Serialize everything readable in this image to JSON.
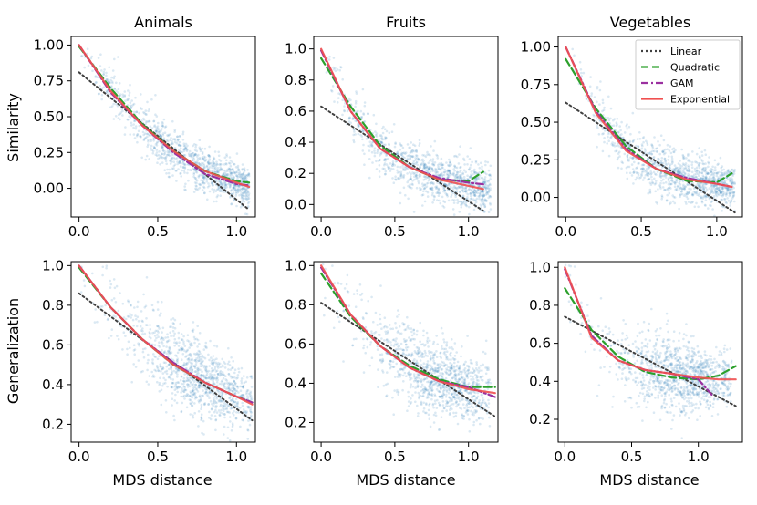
{
  "chart_data": {
    "type": "scatter",
    "row_labels": [
      "Similarity",
      "Generalization"
    ],
    "xlabel": "MDS distance",
    "legend": {
      "location": "top-right",
      "entries": [
        {
          "name": "Linear",
          "color": "#404040",
          "style": "dotted"
        },
        {
          "name": "Quadratic",
          "color": "#2ca02c",
          "style": "dashed"
        },
        {
          "name": "GAM",
          "color": "#9b30a0",
          "style": "dashdot"
        },
        {
          "name": "Exponential",
          "color": "#f05050",
          "style": "solid"
        }
      ]
    },
    "panels": [
      {
        "title": "Animals",
        "row": 0,
        "col": 0,
        "xlim": [
          -0.05,
          1.12
        ],
        "ylim": [
          -0.2,
          1.06
        ],
        "xticks": [
          0.0,
          0.5,
          1.0
        ],
        "xtick_labels": [
          "0.0",
          "0.5",
          "1.0"
        ],
        "yticks": [
          0.0,
          0.25,
          0.5,
          0.75,
          1.0
        ],
        "ytick_labels": [
          "0.00",
          "0.25",
          "0.50",
          "0.75",
          "1.00"
        ],
        "scatter": {
          "n": 1100,
          "x_range": [
            0.0,
            1.08
          ],
          "seed": 11
        },
        "fits": {
          "Linear": {
            "x": [
              0.0,
              1.08
            ],
            "y": [
              0.81,
              -0.15
            ]
          },
          "Quadratic": {
            "x": [
              0.0,
              0.2,
              0.4,
              0.6,
              0.8,
              1.0,
              1.08
            ],
            "y": [
              0.99,
              0.7,
              0.45,
              0.26,
              0.12,
              0.05,
              0.04
            ]
          },
          "GAM": {
            "x": [
              0.0,
              0.2,
              0.4,
              0.6,
              0.8,
              1.0,
              1.08
            ],
            "y": [
              1.0,
              0.67,
              0.44,
              0.25,
              0.1,
              0.03,
              0.02
            ]
          },
          "Exponential": {
            "x": [
              0.0,
              0.2,
              0.4,
              0.6,
              0.8,
              1.0,
              1.08
            ],
            "y": [
              1.0,
              0.68,
              0.44,
              0.26,
              0.12,
              0.04,
              0.01
            ]
          }
        }
      },
      {
        "title": "Fruits",
        "row": 0,
        "col": 1,
        "xlim": [
          -0.05,
          1.2
        ],
        "ylim": [
          -0.08,
          1.08
        ],
        "xticks": [
          0.0,
          0.5,
          1.0
        ],
        "xtick_labels": [
          "0.0",
          "0.5",
          "1.0"
        ],
        "yticks": [
          0.0,
          0.2,
          0.4,
          0.6,
          0.8,
          1.0
        ],
        "ytick_labels": [
          "0.0",
          "0.2",
          "0.4",
          "0.6",
          "0.8",
          "1.0"
        ],
        "scatter": {
          "n": 1100,
          "x_range": [
            0.0,
            1.15
          ],
          "seed": 23
        },
        "fits": {
          "Linear": {
            "x": [
              0.0,
              1.1
            ],
            "y": [
              0.63,
              -0.04
            ]
          },
          "Quadratic": {
            "x": [
              0.0,
              0.2,
              0.4,
              0.6,
              0.8,
              1.0,
              1.1
            ],
            "y": [
              0.94,
              0.63,
              0.38,
              0.24,
              0.16,
              0.15,
              0.21
            ]
          },
          "GAM": {
            "x": [
              0.0,
              0.2,
              0.4,
              0.6,
              0.8,
              1.0,
              1.1
            ],
            "y": [
              0.99,
              0.6,
              0.36,
              0.24,
              0.17,
              0.14,
              0.13
            ]
          },
          "Exponential": {
            "x": [
              0.0,
              0.2,
              0.4,
              0.6,
              0.8,
              1.0,
              1.1
            ],
            "y": [
              1.0,
              0.6,
              0.36,
              0.24,
              0.16,
              0.12,
              0.1
            ]
          }
        }
      },
      {
        "title": "Vegetables",
        "row": 0,
        "col": 2,
        "xlim": [
          -0.05,
          1.17
        ],
        "ylim": [
          -0.13,
          1.07
        ],
        "xticks": [
          0.0,
          0.5,
          1.0
        ],
        "xtick_labels": [
          "0.0",
          "0.5",
          "1.0"
        ],
        "yticks": [
          0.0,
          0.25,
          0.5,
          0.75,
          1.0
        ],
        "ytick_labels": [
          "0.00",
          "0.25",
          "0.50",
          "0.75",
          "1.00"
        ],
        "scatter": {
          "n": 1100,
          "x_range": [
            0.0,
            1.12
          ],
          "seed": 37
        },
        "fits": {
          "Linear": {
            "x": [
              0.0,
              1.12
            ],
            "y": [
              0.63,
              -0.1
            ]
          },
          "Quadratic": {
            "x": [
              0.0,
              0.2,
              0.4,
              0.6,
              0.8,
              1.0,
              1.1
            ],
            "y": [
              0.92,
              0.59,
              0.34,
              0.19,
              0.11,
              0.1,
              0.16
            ]
          },
          "GAM": {
            "x": [
              0.0,
              0.2,
              0.4,
              0.6,
              0.8,
              1.0,
              1.1
            ],
            "y": [
              1.0,
              0.57,
              0.32,
              0.19,
              0.13,
              0.09,
              0.07
            ]
          },
          "Exponential": {
            "x": [
              0.0,
              0.2,
              0.4,
              0.6,
              0.8,
              1.0,
              1.1
            ],
            "y": [
              1.0,
              0.56,
              0.31,
              0.19,
              0.12,
              0.09,
              0.07
            ]
          }
        }
      },
      {
        "title": "",
        "row": 1,
        "col": 0,
        "xlim": [
          -0.05,
          1.12
        ],
        "ylim": [
          0.11,
          1.02
        ],
        "xticks": [
          0.0,
          0.5,
          1.0
        ],
        "xtick_labels": [
          "0.0",
          "0.5",
          "1.0"
        ],
        "yticks": [
          0.2,
          0.4,
          0.6,
          0.8,
          1.0
        ],
        "ytick_labels": [
          "0.2",
          "0.4",
          "0.6",
          "0.8",
          "1.0"
        ],
        "scatter": {
          "n": 1100,
          "x_range": [
            0.0,
            1.1
          ],
          "seed": 53
        },
        "fits": {
          "Linear": {
            "x": [
              0.0,
              1.1
            ],
            "y": [
              0.86,
              0.22
            ]
          },
          "Quadratic": {
            "x": [
              0.0,
              0.2,
              0.4,
              0.6,
              0.8,
              1.0,
              1.1
            ],
            "y": [
              0.99,
              0.79,
              0.63,
              0.5,
              0.41,
              0.34,
              0.31
            ]
          },
          "GAM": {
            "x": [
              0.0,
              0.2,
              0.4,
              0.6,
              0.8,
              1.0,
              1.1
            ],
            "y": [
              1.0,
              0.79,
              0.63,
              0.51,
              0.41,
              0.34,
              0.31
            ]
          },
          "Exponential": {
            "x": [
              0.0,
              0.2,
              0.4,
              0.6,
              0.8,
              1.0,
              1.1
            ],
            "y": [
              1.0,
              0.79,
              0.63,
              0.5,
              0.41,
              0.34,
              0.3
            ]
          }
        }
      },
      {
        "title": "",
        "row": 1,
        "col": 1,
        "xlim": [
          -0.05,
          1.2
        ],
        "ylim": [
          0.1,
          1.02
        ],
        "xticks": [
          0.0,
          0.5,
          1.0
        ],
        "xtick_labels": [
          "0.0",
          "0.5",
          "1.0"
        ],
        "yticks": [
          0.2,
          0.4,
          0.6,
          0.8,
          1.0
        ],
        "ytick_labels": [
          "0.2",
          "0.4",
          "0.6",
          "0.8",
          "1.0"
        ],
        "scatter": {
          "n": 1100,
          "x_range": [
            0.0,
            1.15
          ],
          "seed": 71
        },
        "fits": {
          "Linear": {
            "x": [
              0.0,
              1.18
            ],
            "y": [
              0.81,
              0.23
            ]
          },
          "Quadratic": {
            "x": [
              0.0,
              0.2,
              0.4,
              0.6,
              0.8,
              1.0,
              1.18
            ],
            "y": [
              0.96,
              0.74,
              0.59,
              0.49,
              0.42,
              0.38,
              0.38
            ]
          },
          "GAM": {
            "x": [
              0.0,
              0.2,
              0.4,
              0.6,
              0.8,
              1.0,
              1.18
            ],
            "y": [
              0.99,
              0.75,
              0.59,
              0.48,
              0.41,
              0.38,
              0.33
            ]
          },
          "Exponential": {
            "x": [
              0.0,
              0.2,
              0.4,
              0.6,
              0.8,
              1.0,
              1.18
            ],
            "y": [
              1.0,
              0.75,
              0.59,
              0.48,
              0.41,
              0.37,
              0.35
            ]
          }
        }
      },
      {
        "title": "",
        "row": 1,
        "col": 2,
        "xlim": [
          -0.05,
          1.33
        ],
        "ylim": [
          0.08,
          1.03
        ],
        "xticks": [
          0.0,
          0.5,
          1.0
        ],
        "xtick_labels": [
          "0.0",
          "0.5",
          "1.0"
        ],
        "yticks": [
          0.2,
          0.4,
          0.6,
          0.8,
          1.0
        ],
        "ytick_labels": [
          "0.2",
          "0.4",
          "0.6",
          "0.8",
          "1.0"
        ],
        "scatter": {
          "n": 1100,
          "x_range": [
            0.0,
            1.25
          ],
          "seed": 89
        },
        "fits": {
          "Linear": {
            "x": [
              0.0,
              1.28
            ],
            "y": [
              0.74,
              0.27
            ]
          },
          "Quadratic": {
            "x": [
              0.0,
              0.2,
              0.4,
              0.6,
              0.8,
              1.0,
              1.15,
              1.28
            ],
            "y": [
              0.89,
              0.67,
              0.53,
              0.45,
              0.42,
              0.41,
              0.43,
              0.48
            ]
          },
          "GAM": {
            "x": [
              0.0,
              0.2,
              0.4,
              0.6,
              0.8,
              1.0,
              1.1
            ],
            "y": [
              0.99,
              0.64,
              0.51,
              0.46,
              0.44,
              0.41,
              0.33
            ]
          },
          "Exponential": {
            "x": [
              0.0,
              0.2,
              0.4,
              0.6,
              0.8,
              1.0,
              1.15,
              1.28
            ],
            "y": [
              1.0,
              0.63,
              0.51,
              0.46,
              0.44,
              0.42,
              0.41,
              0.41
            ]
          }
        }
      }
    ]
  }
}
